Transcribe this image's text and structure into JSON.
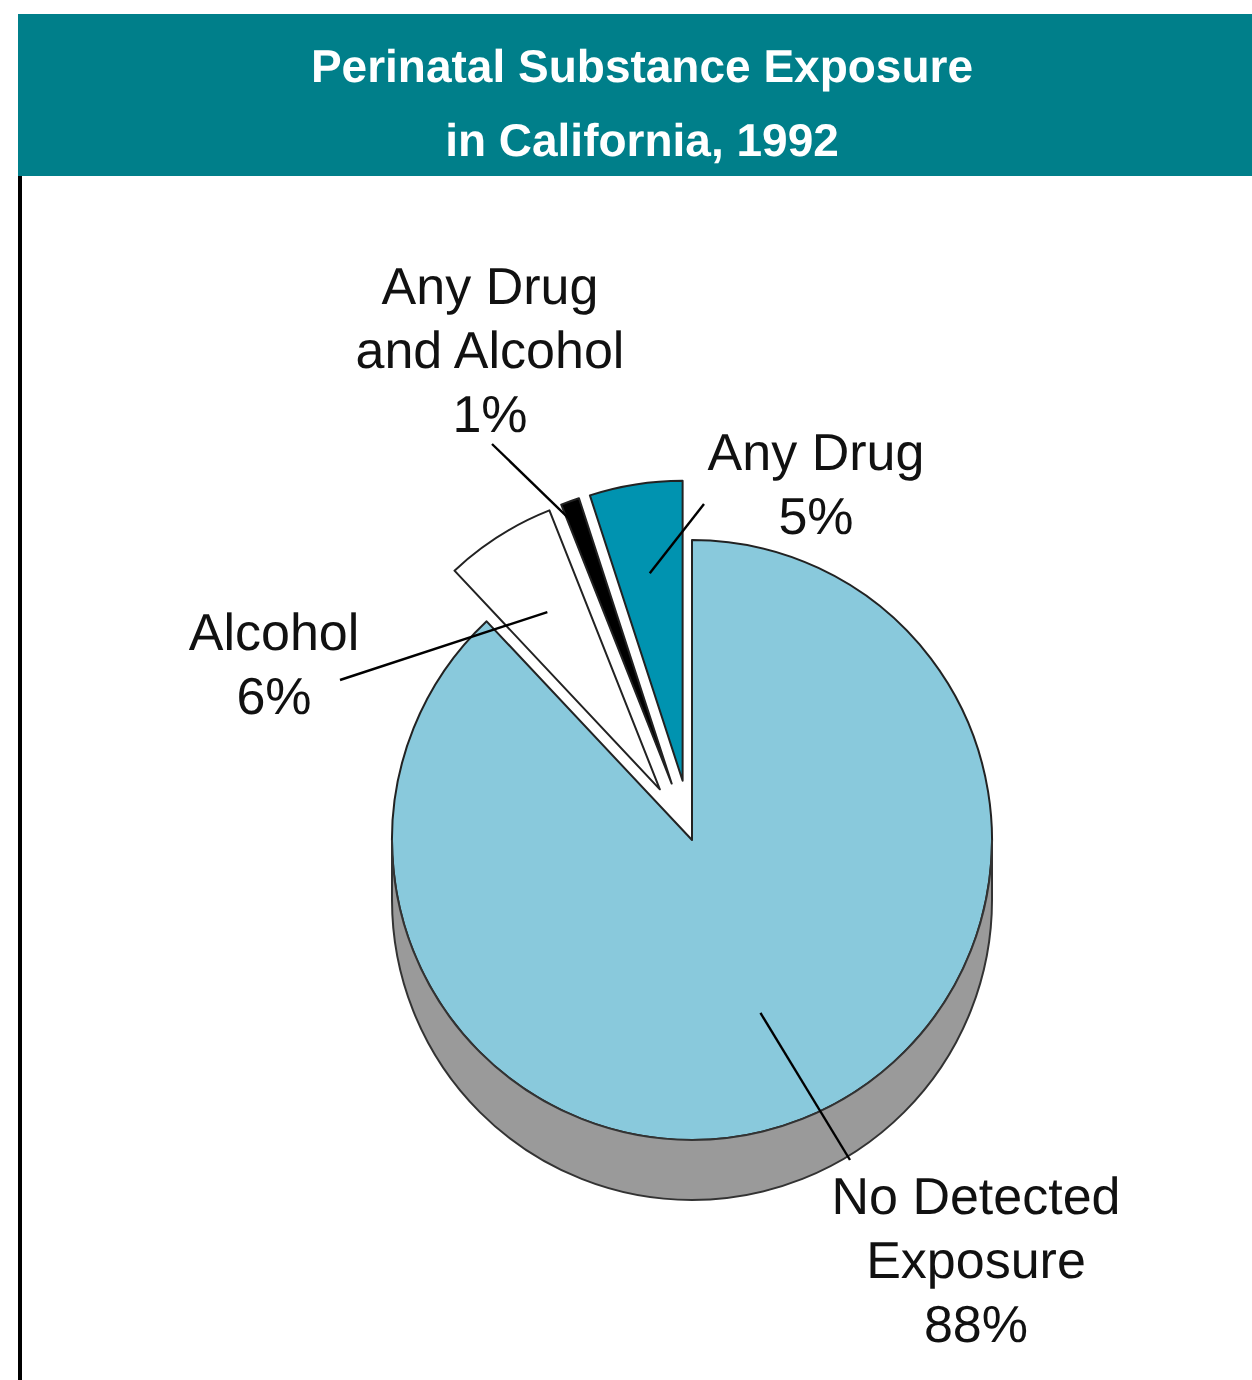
{
  "chart_data": {
    "type": "pie",
    "title": "Perinatal Substance Exposure\nin California, 1992",
    "categories": [
      "No Detected Exposure",
      "Alcohol",
      "Any Drug and Alcohol",
      "Any Drug"
    ],
    "values": [
      88,
      6,
      1,
      5
    ],
    "colors": [
      "#89c9dc",
      "#ffffff",
      "#000000",
      "#0093b0"
    ],
    "value_labels": [
      "88%",
      "6%",
      "1%",
      "5%"
    ]
  }
}
